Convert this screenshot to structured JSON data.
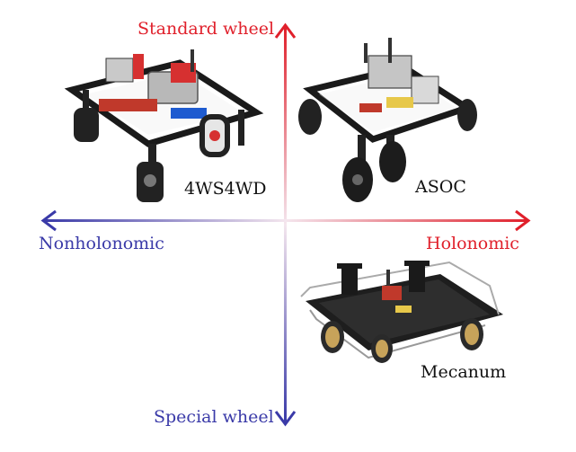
{
  "axes": {
    "top_label": "Standard wheel",
    "bottom_label": "Special wheel",
    "left_label": "Nonholonomic",
    "right_label": "Holonomic"
  },
  "robots": [
    {
      "name": "4WS4WD",
      "quadrant": "top-left"
    },
    {
      "name": "ASOC",
      "quadrant": "top-right"
    },
    {
      "name": "Mecanum",
      "quadrant": "bottom-right"
    }
  ],
  "colors": {
    "red": "#e0202b",
    "blue": "#3a3aa8",
    "black": "#111111"
  }
}
